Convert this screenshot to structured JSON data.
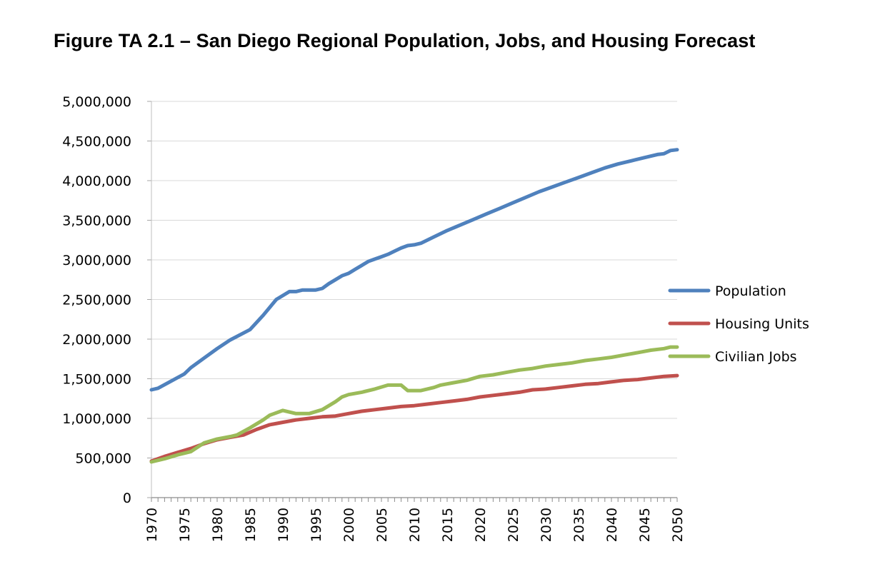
{
  "chart_data": {
    "type": "line",
    "title": "Figure TA 2.1 – San Diego Regional Population, Jobs, and Housing Forecast",
    "xlabel": "",
    "ylabel": "",
    "xlim": [
      1970,
      2050
    ],
    "ylim": [
      0,
      5000000
    ],
    "yticks": [
      0,
      500000,
      1000000,
      1500000,
      2000000,
      2500000,
      3000000,
      3500000,
      4000000,
      4500000,
      5000000
    ],
    "ytick_labels": [
      "0",
      "500,000",
      "1,000,000",
      "1,500,000",
      "2,000,000",
      "2,500,000",
      "3,000,000",
      "3,500,000",
      "4,000,000",
      "4,500,000",
      "5,000,000"
    ],
    "xtick_labels": [
      "1970",
      "1975",
      "1980",
      "1985",
      "1990",
      "1995",
      "2000",
      "2005",
      "2010",
      "2015",
      "2020",
      "2025",
      "2030",
      "2035",
      "2040",
      "2045",
      "2050"
    ],
    "grid": "horizontal",
    "legend_position": "right",
    "series": [
      {
        "name": "Population",
        "color": "#4F81BD",
        "points": [
          [
            1970,
            1360000
          ],
          [
            1971,
            1380000
          ],
          [
            1973,
            1470000
          ],
          [
            1975,
            1560000
          ],
          [
            1976,
            1640000
          ],
          [
            1978,
            1760000
          ],
          [
            1980,
            1880000
          ],
          [
            1982,
            1990000
          ],
          [
            1985,
            2120000
          ],
          [
            1987,
            2300000
          ],
          [
            1989,
            2500000
          ],
          [
            1991,
            2600000
          ],
          [
            1992,
            2600000
          ],
          [
            1993,
            2620000
          ],
          [
            1995,
            2620000
          ],
          [
            1996,
            2640000
          ],
          [
            1997,
            2700000
          ],
          [
            1998,
            2750000
          ],
          [
            1999,
            2800000
          ],
          [
            2000,
            2830000
          ],
          [
            2001,
            2880000
          ],
          [
            2002,
            2930000
          ],
          [
            2003,
            2980000
          ],
          [
            2004,
            3010000
          ],
          [
            2005,
            3040000
          ],
          [
            2006,
            3070000
          ],
          [
            2007,
            3110000
          ],
          [
            2008,
            3150000
          ],
          [
            2009,
            3180000
          ],
          [
            2010,
            3190000
          ],
          [
            2011,
            3210000
          ],
          [
            2013,
            3290000
          ],
          [
            2015,
            3370000
          ],
          [
            2017,
            3440000
          ],
          [
            2019,
            3510000
          ],
          [
            2021,
            3580000
          ],
          [
            2023,
            3650000
          ],
          [
            2025,
            3720000
          ],
          [
            2027,
            3790000
          ],
          [
            2029,
            3860000
          ],
          [
            2031,
            3920000
          ],
          [
            2033,
            3980000
          ],
          [
            2035,
            4040000
          ],
          [
            2037,
            4100000
          ],
          [
            2039,
            4160000
          ],
          [
            2041,
            4210000
          ],
          [
            2043,
            4250000
          ],
          [
            2045,
            4290000
          ],
          [
            2047,
            4330000
          ],
          [
            2048,
            4340000
          ],
          [
            2049,
            4380000
          ],
          [
            2050,
            4390000
          ]
        ]
      },
      {
        "name": "Housing Units",
        "color": "#C0504D",
        "points": [
          [
            1970,
            460000
          ],
          [
            1972,
            520000
          ],
          [
            1974,
            570000
          ],
          [
            1976,
            620000
          ],
          [
            1978,
            680000
          ],
          [
            1980,
            730000
          ],
          [
            1982,
            760000
          ],
          [
            1984,
            790000
          ],
          [
            1986,
            860000
          ],
          [
            1988,
            920000
          ],
          [
            1990,
            950000
          ],
          [
            1992,
            980000
          ],
          [
            1994,
            1000000
          ],
          [
            1996,
            1020000
          ],
          [
            1998,
            1030000
          ],
          [
            2000,
            1060000
          ],
          [
            2002,
            1090000
          ],
          [
            2004,
            1110000
          ],
          [
            2006,
            1130000
          ],
          [
            2008,
            1150000
          ],
          [
            2010,
            1160000
          ],
          [
            2012,
            1180000
          ],
          [
            2014,
            1200000
          ],
          [
            2016,
            1220000
          ],
          [
            2018,
            1240000
          ],
          [
            2020,
            1270000
          ],
          [
            2022,
            1290000
          ],
          [
            2024,
            1310000
          ],
          [
            2026,
            1330000
          ],
          [
            2028,
            1360000
          ],
          [
            2030,
            1370000
          ],
          [
            2032,
            1390000
          ],
          [
            2034,
            1410000
          ],
          [
            2036,
            1430000
          ],
          [
            2038,
            1440000
          ],
          [
            2040,
            1460000
          ],
          [
            2042,
            1480000
          ],
          [
            2044,
            1490000
          ],
          [
            2046,
            1510000
          ],
          [
            2048,
            1530000
          ],
          [
            2050,
            1540000
          ]
        ]
      },
      {
        "name": "Civilian Jobs",
        "color": "#9BBB59",
        "points": [
          [
            1970,
            450000
          ],
          [
            1972,
            490000
          ],
          [
            1974,
            540000
          ],
          [
            1976,
            580000
          ],
          [
            1978,
            690000
          ],
          [
            1980,
            740000
          ],
          [
            1982,
            770000
          ],
          [
            1983,
            790000
          ],
          [
            1985,
            880000
          ],
          [
            1987,
            980000
          ],
          [
            1988,
            1040000
          ],
          [
            1990,
            1100000
          ],
          [
            1992,
            1060000
          ],
          [
            1994,
            1060000
          ],
          [
            1996,
            1110000
          ],
          [
            1998,
            1210000
          ],
          [
            1999,
            1270000
          ],
          [
            2000,
            1300000
          ],
          [
            2002,
            1330000
          ],
          [
            2004,
            1370000
          ],
          [
            2006,
            1420000
          ],
          [
            2008,
            1420000
          ],
          [
            2009,
            1350000
          ],
          [
            2011,
            1350000
          ],
          [
            2013,
            1390000
          ],
          [
            2014,
            1420000
          ],
          [
            2016,
            1450000
          ],
          [
            2018,
            1480000
          ],
          [
            2020,
            1530000
          ],
          [
            2022,
            1550000
          ],
          [
            2024,
            1580000
          ],
          [
            2026,
            1610000
          ],
          [
            2028,
            1630000
          ],
          [
            2030,
            1660000
          ],
          [
            2032,
            1680000
          ],
          [
            2034,
            1700000
          ],
          [
            2036,
            1730000
          ],
          [
            2038,
            1750000
          ],
          [
            2040,
            1770000
          ],
          [
            2042,
            1800000
          ],
          [
            2044,
            1830000
          ],
          [
            2046,
            1860000
          ],
          [
            2048,
            1880000
          ],
          [
            2049,
            1900000
          ],
          [
            2050,
            1900000
          ]
        ]
      }
    ]
  }
}
